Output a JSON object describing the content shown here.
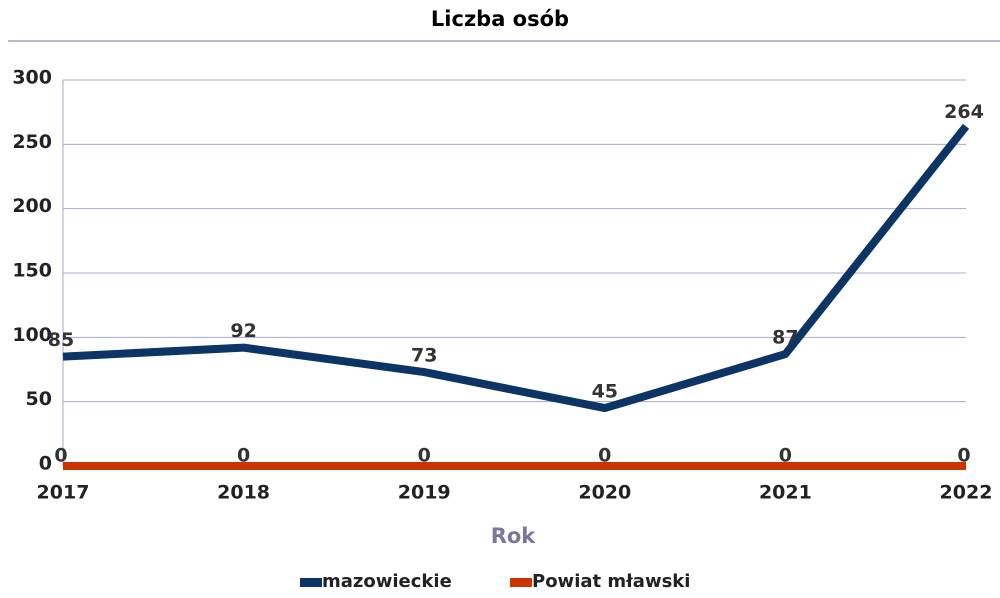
{
  "chart_data": {
    "type": "line",
    "title": "Liczba osób",
    "x_label": "Rok",
    "categories": [
      "2017",
      "2018",
      "2019",
      "2020",
      "2021",
      "2022"
    ],
    "series": [
      {
        "name": "mazowieckie",
        "color": "#0c3464",
        "values": [
          85,
          92,
          73,
          45,
          87,
          264
        ]
      },
      {
        "name": "Powiat mławski",
        "color": "#cc3300",
        "values": [
          0,
          0,
          0,
          0,
          0,
          0
        ]
      }
    ],
    "ylim": [
      0,
      300
    ],
    "yticks": [
      0,
      50,
      100,
      150,
      200,
      250,
      300
    ],
    "grid": true,
    "legend": "bottom"
  }
}
